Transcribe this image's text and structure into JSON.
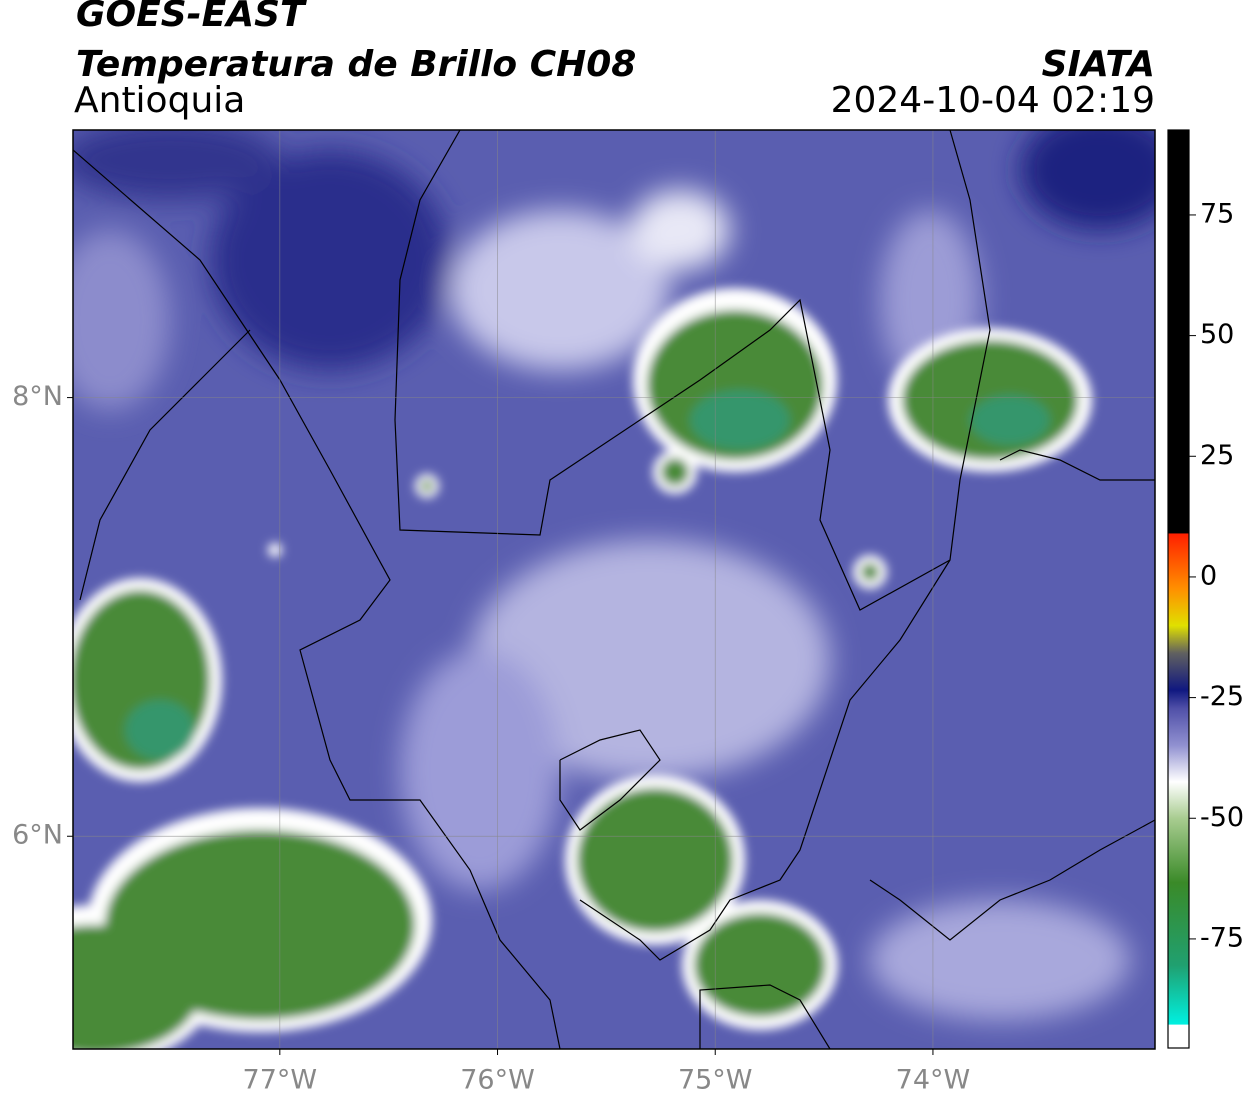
{
  "header": {
    "title": "GOES-EAST",
    "subtitle": "Temperatura de Brillo CH08",
    "region": "Antioquia",
    "source": "SIATA",
    "datetime": "2024-10-04 02:19"
  },
  "map": {
    "xlim": [
      -77.95,
      -72.98
    ],
    "ylim": [
      5.03,
      9.22
    ],
    "grid": true,
    "xticks": [
      {
        "value": -77,
        "label": "77°W"
      },
      {
        "value": -76,
        "label": "76°W"
      },
      {
        "value": -75,
        "label": "75°W"
      },
      {
        "value": -74,
        "label": "74°W"
      }
    ],
    "yticks": [
      {
        "value": 8,
        "label": "8°N"
      },
      {
        "value": 6,
        "label": "6°N"
      }
    ]
  },
  "colorbar": {
    "lim": [
      -97.6,
      92.6
    ],
    "ticks": [
      75,
      50,
      25,
      0,
      -25,
      -50,
      -75
    ]
  }
}
